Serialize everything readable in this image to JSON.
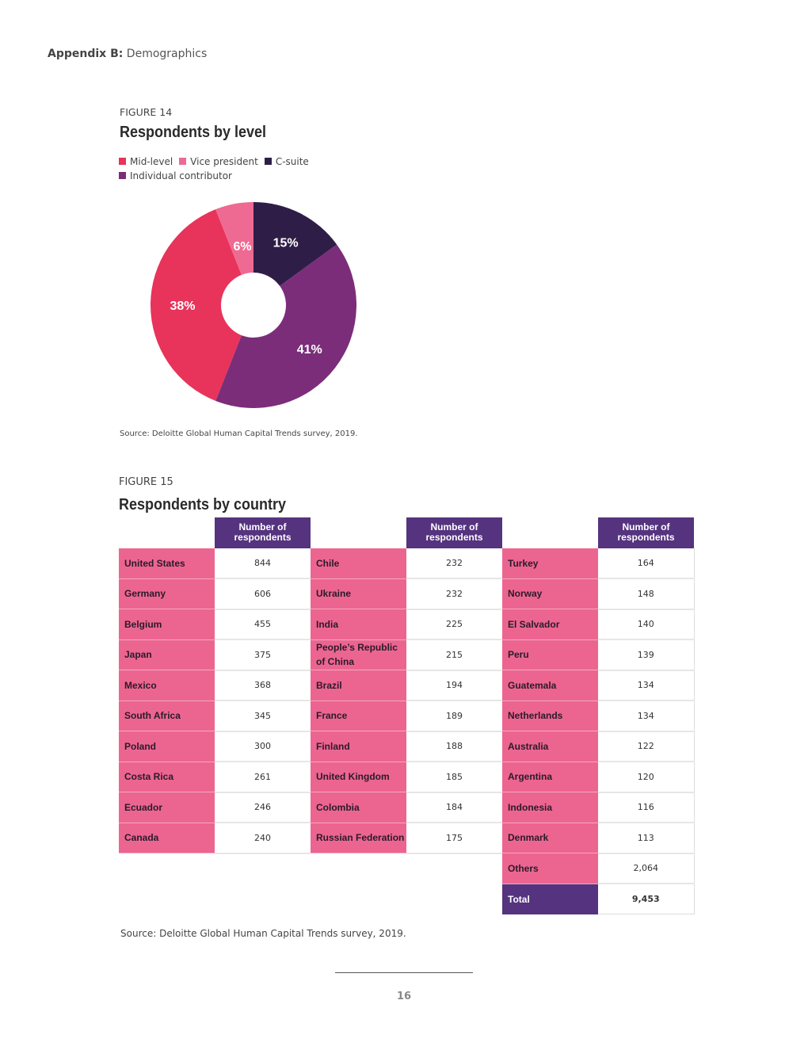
{
  "header": {
    "bold": "Appendix B:",
    "text": "Demographics"
  },
  "figure14": {
    "label": "FIGURE 14",
    "title": "Respondents by level",
    "source": "Source: Deloitte Global Human Capital Trends survey, 2019."
  },
  "chart_data": {
    "type": "pie",
    "donut": true,
    "title": "Respondents by level",
    "legend_placement": "top-left",
    "slices": [
      {
        "name": "C-suite",
        "value": 15,
        "label": "15%",
        "color": "#2E1E47"
      },
      {
        "name": "Individual contributor",
        "value": 41,
        "label": "41%",
        "color": "#7B2D7A"
      },
      {
        "name": "Mid-level",
        "value": 38,
        "label": "38%",
        "color": "#E8335A"
      },
      {
        "name": "Vice president",
        "value": 6,
        "label": "6%",
        "color": "#EE6A92"
      }
    ],
    "legend": [
      "Mid-level",
      "Vice president",
      "C-suite",
      "Individual contributor"
    ]
  },
  "figure15": {
    "label": "FIGURE 15",
    "title": "Respondents by country",
    "header": "Number of respondents",
    "col1": [
      [
        "United States",
        "844"
      ],
      [
        "Germany",
        "606"
      ],
      [
        "Belgium",
        "455"
      ],
      [
        "Japan",
        "375"
      ],
      [
        "Mexico",
        "368"
      ],
      [
        "South Africa",
        "345"
      ],
      [
        "Poland",
        "300"
      ],
      [
        "Costa Rica",
        "261"
      ],
      [
        "Ecuador",
        "246"
      ],
      [
        "Canada",
        "240"
      ]
    ],
    "col2": [
      [
        "Chile",
        "232"
      ],
      [
        "Ukraine",
        "232"
      ],
      [
        "India",
        "225"
      ],
      [
        "People’s Republic of China",
        "215"
      ],
      [
        "Brazil",
        "194"
      ],
      [
        "France",
        "189"
      ],
      [
        "Finland",
        "188"
      ],
      [
        "United Kingdom",
        "185"
      ],
      [
        "Colombia",
        "184"
      ],
      [
        "Russian Federation",
        "175"
      ]
    ],
    "col3": [
      [
        "Turkey",
        "164"
      ],
      [
        "Norway",
        "148"
      ],
      [
        "El Salvador",
        "140"
      ],
      [
        "Peru",
        "139"
      ],
      [
        "Guatemala",
        "134"
      ],
      [
        "Netherlands",
        "134"
      ],
      [
        "Australia",
        "122"
      ],
      [
        "Argentina",
        "120"
      ],
      [
        "Indonesia",
        "116"
      ],
      [
        "Denmark",
        "113"
      ]
    ],
    "others": [
      "Others",
      "2,064"
    ],
    "total": [
      "Total",
      "9,453"
    ],
    "source": "Source: Deloitte Global Human Capital Trends survey, 2019."
  },
  "page_number": "16"
}
